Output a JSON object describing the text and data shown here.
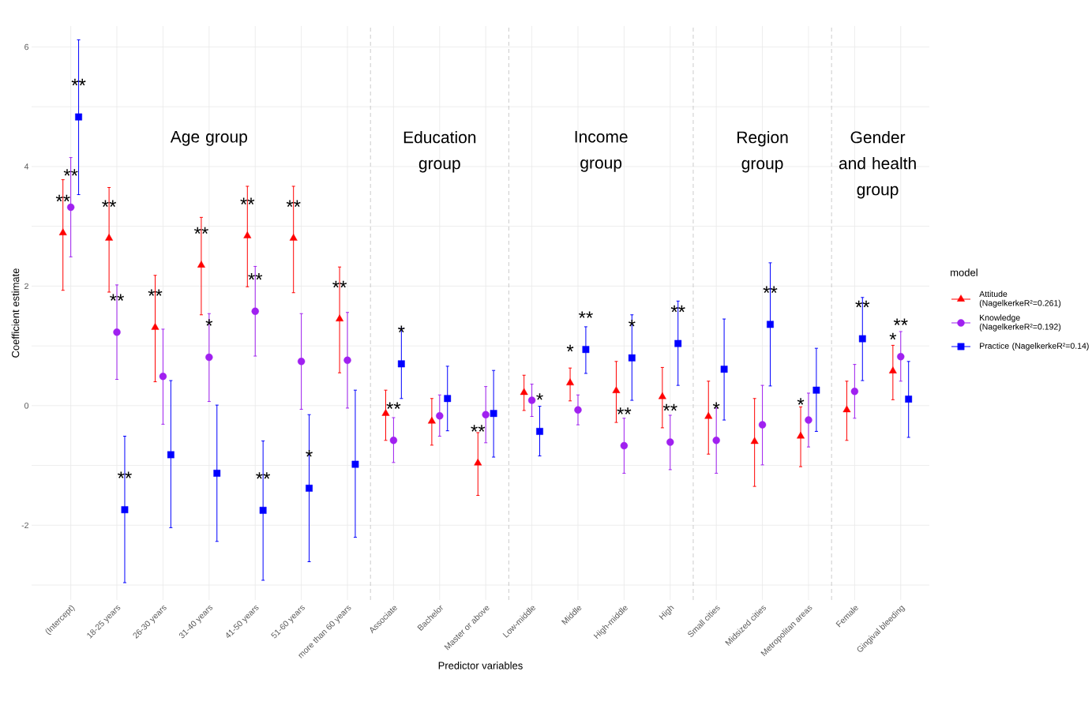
{
  "chart_data": {
    "type": "scatter",
    "xlabel": "Predictor variables",
    "ylabel": "Coefficient estimate",
    "legend_title": "model",
    "categories": [
      "(Intercept)",
      "18-25 years",
      "26-30 years",
      "31-40 years",
      "41-50 years",
      "51-60 years",
      "more than 60 years",
      "Associate",
      "Bachelor",
      "Master or above",
      "Low-middle",
      "Middle",
      "High-middle",
      "High",
      "Small cities",
      "Midsized cities",
      "Metropolitan areas",
      "Female",
      "Gingival bleeding"
    ],
    "ylim": [
      -3.25,
      6.35
    ],
    "yticks": [
      {
        "value": -3,
        "label": null
      },
      -2,
      {
        "value": -1,
        "label": null
      },
      0,
      {
        "value": 1,
        "label": null
      },
      2,
      {
        "value": 3,
        "label": null
      },
      4,
      {
        "value": 5,
        "label": null
      },
      6
    ],
    "grid": true,
    "legend": "right",
    "annotations": [
      "Age group",
      "Education group",
      "Income group",
      "Region group",
      "Gender and health group"
    ],
    "series": [
      {
        "name": "Attitude (NagelkerkeR²=0.261)",
        "color": "#ff0000",
        "marker": "triangle",
        "values": [
          2.89,
          2.8,
          1.31,
          2.35,
          2.84,
          2.8,
          1.45,
          -0.13,
          -0.26,
          -0.96,
          0.22,
          0.38,
          0.25,
          0.15,
          -0.18,
          -0.6,
          -0.51,
          -0.07,
          0.58
        ],
        "errors": [
          [
            1.93,
            3.78
          ],
          [
            1.9,
            3.65
          ],
          [
            0.4,
            2.18
          ],
          [
            1.52,
            3.15
          ],
          [
            1.99,
            3.67
          ],
          [
            1.89,
            3.67
          ],
          [
            0.55,
            2.32
          ],
          [
            -0.58,
            0.26
          ],
          [
            -0.66,
            0.12
          ],
          [
            -1.5,
            -0.45
          ],
          [
            -0.08,
            0.51
          ],
          [
            0.08,
            0.63
          ],
          [
            -0.28,
            0.74
          ],
          [
            -0.37,
            0.64
          ],
          [
            -0.81,
            0.41
          ],
          [
            -1.35,
            0.12
          ],
          [
            -1.02,
            -0.02
          ],
          [
            -0.58,
            0.41
          ],
          [
            0.1,
            1.01
          ]
        ],
        "value_labels": [
          "**",
          "**",
          "**",
          "**",
          "**",
          "**",
          "**",
          null,
          null,
          "**",
          null,
          "*",
          null,
          null,
          null,
          null,
          "*",
          null,
          "*"
        ]
      },
      {
        "name": "Knowledge (NagelkerkeR²=0.192)",
        "color": "#a020f0",
        "marker": "circle",
        "values": [
          3.32,
          1.23,
          0.49,
          0.81,
          1.58,
          0.74,
          0.76,
          -0.58,
          -0.17,
          -0.15,
          0.09,
          -0.07,
          -0.67,
          -0.61,
          -0.58,
          -0.32,
          -0.24,
          0.24,
          0.82
        ],
        "errors": [
          [
            2.49,
            4.15
          ],
          [
            0.44,
            2.02
          ],
          [
            -0.31,
            1.28
          ],
          [
            0.07,
            1.54
          ],
          [
            0.83,
            2.33
          ],
          [
            -0.06,
            1.54
          ],
          [
            -0.04,
            1.56
          ],
          [
            -0.95,
            -0.2
          ],
          [
            -0.51,
            0.18
          ],
          [
            -0.62,
            0.32
          ],
          [
            -0.18,
            0.36
          ],
          [
            -0.32,
            0.18
          ],
          [
            -1.13,
            -0.21
          ],
          [
            -1.07,
            -0.16
          ],
          [
            -1.13,
            -0.04
          ],
          [
            -0.99,
            0.34
          ],
          [
            -0.69,
            0.21
          ],
          [
            -0.21,
            0.69
          ],
          [
            0.41,
            1.24
          ]
        ],
        "value_labels": [
          "**",
          "**",
          null,
          "*",
          "**",
          null,
          null,
          "**",
          null,
          null,
          null,
          null,
          "**",
          "**",
          "*",
          null,
          null,
          null,
          "**"
        ]
      },
      {
        "name": "Practice (NagelkerkeR²=0.14)",
        "color": "#0000ff",
        "marker": "square",
        "values": [
          4.83,
          -1.74,
          -0.82,
          -1.13,
          -1.75,
          -1.38,
          -0.98,
          0.7,
          0.12,
          -0.13,
          -0.43,
          0.94,
          0.8,
          1.04,
          0.61,
          1.36,
          0.26,
          1.12,
          0.11
        ],
        "errors": [
          [
            3.53,
            6.12
          ],
          [
            -2.96,
            -0.51
          ],
          [
            -2.04,
            0.42
          ],
          [
            -2.27,
            0.01
          ],
          [
            -2.92,
            -0.59
          ],
          [
            -2.61,
            -0.15
          ],
          [
            -2.2,
            0.26
          ],
          [
            0.12,
            1.29
          ],
          [
            -0.42,
            0.66
          ],
          [
            -0.86,
            0.59
          ],
          [
            -0.84,
            -0.01
          ],
          [
            0.54,
            1.32
          ],
          [
            0.09,
            1.52
          ],
          [
            0.34,
            1.75
          ],
          [
            -0.24,
            1.45
          ],
          [
            0.33,
            2.39
          ],
          [
            -0.43,
            0.96
          ],
          [
            0.42,
            1.81
          ],
          [
            -0.53,
            0.74
          ]
        ],
        "value_labels": [
          "**",
          "**",
          null,
          null,
          "**",
          "*",
          null,
          "*",
          null,
          null,
          "*",
          "**",
          "*",
          "**",
          null,
          "**",
          null,
          "**",
          null
        ]
      }
    ]
  }
}
